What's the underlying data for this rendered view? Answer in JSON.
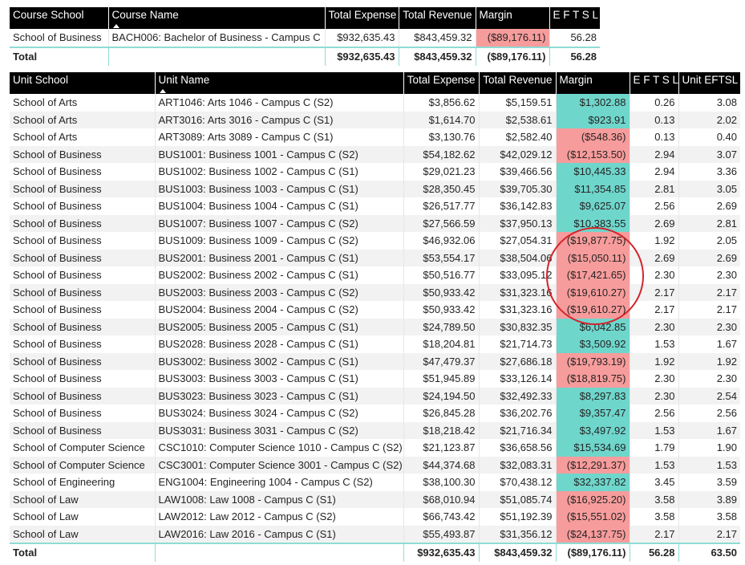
{
  "summary_table": {
    "headers": {
      "course_school": "Course School",
      "course_name": "Course Name",
      "total_expense": "Total Expense",
      "total_revenue": "Total Revenue",
      "margin": "Margin",
      "eftsl": "E F T S L"
    },
    "row": {
      "course_school": "School of Business",
      "course_name": "BACH006: Bachelor of Business - Campus C",
      "total_expense": "$932,635.43",
      "total_revenue": "$843,459.32",
      "margin": "($89,176.11)",
      "margin_status": "negative",
      "eftsl": "56.28"
    },
    "total": {
      "label": "Total",
      "total_expense": "$932,635.43",
      "total_revenue": "$843,459.32",
      "margin": "($89,176.11)",
      "eftsl": "56.28"
    }
  },
  "unit_table": {
    "headers": {
      "unit_school": "Unit School",
      "unit_name": "Unit Name",
      "total_expense": "Total Expense",
      "total_revenue": "Total Revenue",
      "margin": "Margin",
      "eftsl": "E F T S L",
      "unit_eftsl": "Unit EFTSL"
    },
    "rows": [
      {
        "school": "School of Arts",
        "name": "ART1046: Arts 1046 - Campus C (S2)",
        "expense": "$3,856.62",
        "revenue": "$5,159.51",
        "margin": "$1,302.88",
        "status": "positive",
        "eftsl": "0.26",
        "unit_eftsl": "3.08"
      },
      {
        "school": "School of Arts",
        "name": "ART3016: Arts 3016 - Campus C (S1)",
        "expense": "$1,614.70",
        "revenue": "$2,538.61",
        "margin": "$923.91",
        "status": "positive",
        "eftsl": "0.13",
        "unit_eftsl": "2.02"
      },
      {
        "school": "School of Arts",
        "name": "ART3089: Arts 3089 - Campus C (S1)",
        "expense": "$3,130.76",
        "revenue": "$2,582.40",
        "margin": "($548.36)",
        "status": "negative",
        "eftsl": "0.13",
        "unit_eftsl": "0.40"
      },
      {
        "school": "School of Business",
        "name": "BUS1001: Business 1001 - Campus C (S2)",
        "expense": "$54,182.62",
        "revenue": "$42,029.12",
        "margin": "($12,153.50)",
        "status": "negative",
        "eftsl": "2.94",
        "unit_eftsl": "3.07"
      },
      {
        "school": "School of Business",
        "name": "BUS1002: Business 1002 - Campus C (S1)",
        "expense": "$29,021.23",
        "revenue": "$39,466.56",
        "margin": "$10,445.33",
        "status": "positive",
        "eftsl": "2.94",
        "unit_eftsl": "3.36"
      },
      {
        "school": "School of Business",
        "name": "BUS1003: Business 1003 - Campus C (S1)",
        "expense": "$28,350.45",
        "revenue": "$39,705.30",
        "margin": "$11,354.85",
        "status": "positive",
        "eftsl": "2.81",
        "unit_eftsl": "3.05"
      },
      {
        "school": "School of Business",
        "name": "BUS1004: Business 1004 - Campus C (S1)",
        "expense": "$26,517.77",
        "revenue": "$36,142.83",
        "margin": "$9,625.07",
        "status": "positive",
        "eftsl": "2.56",
        "unit_eftsl": "2.69"
      },
      {
        "school": "School of Business",
        "name": "BUS1007: Business 1007 - Campus C (S2)",
        "expense": "$27,566.59",
        "revenue": "$37,950.13",
        "margin": "$10,383.55",
        "status": "positive",
        "eftsl": "2.69",
        "unit_eftsl": "2.81"
      },
      {
        "school": "School of Business",
        "name": "BUS1009: Business 1009 - Campus C (S2)",
        "expense": "$46,932.06",
        "revenue": "$27,054.31",
        "margin": "($19,877.75)",
        "status": "negative",
        "eftsl": "1.92",
        "unit_eftsl": "2.05"
      },
      {
        "school": "School of Business",
        "name": "BUS2001: Business 2001 - Campus C (S1)",
        "expense": "$53,554.17",
        "revenue": "$38,504.06",
        "margin": "($15,050.11)",
        "status": "negative",
        "eftsl": "2.69",
        "unit_eftsl": "2.69"
      },
      {
        "school": "School of Business",
        "name": "BUS2002: Business 2002 - Campus C (S1)",
        "expense": "$50,516.77",
        "revenue": "$33,095.12",
        "margin": "($17,421.65)",
        "status": "negative",
        "eftsl": "2.30",
        "unit_eftsl": "2.30"
      },
      {
        "school": "School of Business",
        "name": "BUS2003: Business 2003 - Campus C (S2)",
        "expense": "$50,933.42",
        "revenue": "$31,323.16",
        "margin": "($19,610.27)",
        "status": "negative",
        "eftsl": "2.17",
        "unit_eftsl": "2.17"
      },
      {
        "school": "School of Business",
        "name": "BUS2004: Business 2004 - Campus C (S2)",
        "expense": "$50,933.42",
        "revenue": "$31,323.16",
        "margin": "($19,610.27)",
        "status": "negative",
        "eftsl": "2.17",
        "unit_eftsl": "2.17"
      },
      {
        "school": "School of Business",
        "name": "BUS2005: Business 2005 - Campus C (S1)",
        "expense": "$24,789.50",
        "revenue": "$30,832.35",
        "margin": "$6,042.85",
        "status": "positive",
        "eftsl": "2.30",
        "unit_eftsl": "2.30"
      },
      {
        "school": "School of Business",
        "name": "BUS2028: Business 2028 - Campus C (S1)",
        "expense": "$18,204.81",
        "revenue": "$21,714.73",
        "margin": "$3,509.92",
        "status": "positive",
        "eftsl": "1.53",
        "unit_eftsl": "1.67"
      },
      {
        "school": "School of Business",
        "name": "BUS3002: Business 3002 - Campus C (S1)",
        "expense": "$47,479.37",
        "revenue": "$27,686.18",
        "margin": "($19,793.19)",
        "status": "negative",
        "eftsl": "1.92",
        "unit_eftsl": "1.92"
      },
      {
        "school": "School of Business",
        "name": "BUS3003: Business 3003 - Campus C (S1)",
        "expense": "$51,945.89",
        "revenue": "$33,126.14",
        "margin": "($18,819.75)",
        "status": "negative",
        "eftsl": "2.30",
        "unit_eftsl": "2.30"
      },
      {
        "school": "School of Business",
        "name": "BUS3023: Business 3023 - Campus C (S1)",
        "expense": "$24,194.50",
        "revenue": "$32,492.33",
        "margin": "$8,297.83",
        "status": "positive",
        "eftsl": "2.30",
        "unit_eftsl": "2.54"
      },
      {
        "school": "School of Business",
        "name": "BUS3024: Business 3024 - Campus C (S2)",
        "expense": "$26,845.28",
        "revenue": "$36,202.76",
        "margin": "$9,357.47",
        "status": "positive",
        "eftsl": "2.56",
        "unit_eftsl": "2.56"
      },
      {
        "school": "School of Business",
        "name": "BUS3031: Business 3031 - Campus C (S2)",
        "expense": "$18,218.42",
        "revenue": "$21,716.34",
        "margin": "$3,497.92",
        "status": "positive",
        "eftsl": "1.53",
        "unit_eftsl": "1.67"
      },
      {
        "school": "School of Computer Science",
        "name": "CSC1010: Computer Science 1010 - Campus C (S2)",
        "expense": "$21,123.87",
        "revenue": "$36,658.56",
        "margin": "$15,534.69",
        "status": "positive",
        "eftsl": "1.79",
        "unit_eftsl": "1.90"
      },
      {
        "school": "School of Computer Science",
        "name": "CSC3001: Computer Science 3001 - Campus C (S2)",
        "expense": "$44,374.68",
        "revenue": "$32,083.31",
        "margin": "($12,291.37)",
        "status": "negative",
        "eftsl": "1.53",
        "unit_eftsl": "1.53"
      },
      {
        "school": "School of Engineering",
        "name": "ENG1004: Engineering 1004 - Campus C (S2)",
        "expense": "$38,100.30",
        "revenue": "$70,438.12",
        "margin": "$32,337.82",
        "status": "positive",
        "eftsl": "3.45",
        "unit_eftsl": "3.59"
      },
      {
        "school": "School of Law",
        "name": "LAW1008: Law 1008 - Campus C (S1)",
        "expense": "$68,010.94",
        "revenue": "$51,085.74",
        "margin": "($16,925.20)",
        "status": "negative",
        "eftsl": "3.58",
        "unit_eftsl": "3.89"
      },
      {
        "school": "School of Law",
        "name": "LAW2012: Law 2012 - Campus C (S2)",
        "expense": "$66,743.42",
        "revenue": "$51,192.39",
        "margin": "($15,551.02)",
        "status": "negative",
        "eftsl": "3.58",
        "unit_eftsl": "3.58"
      },
      {
        "school": "School of Law",
        "name": "LAW2016: Law 2016 - Campus C (S1)",
        "expense": "$55,493.87",
        "revenue": "$31,356.12",
        "margin": "($24,137.75)",
        "status": "negative",
        "eftsl": "2.17",
        "unit_eftsl": "2.17"
      }
    ],
    "total": {
      "label": "Total",
      "expense": "$932,635.43",
      "revenue": "$843,459.32",
      "margin": "($89,176.11)",
      "eftsl": "56.28",
      "unit_eftsl": "63.50"
    }
  },
  "colors": {
    "header_bg": "#000000",
    "positive_margin": "#6fd6cc",
    "negative_margin": "#f79c9c",
    "row_alt": "#f2f2f2",
    "annotation_circle": "#d3242b",
    "total_rule": "#8fdcd4"
  }
}
